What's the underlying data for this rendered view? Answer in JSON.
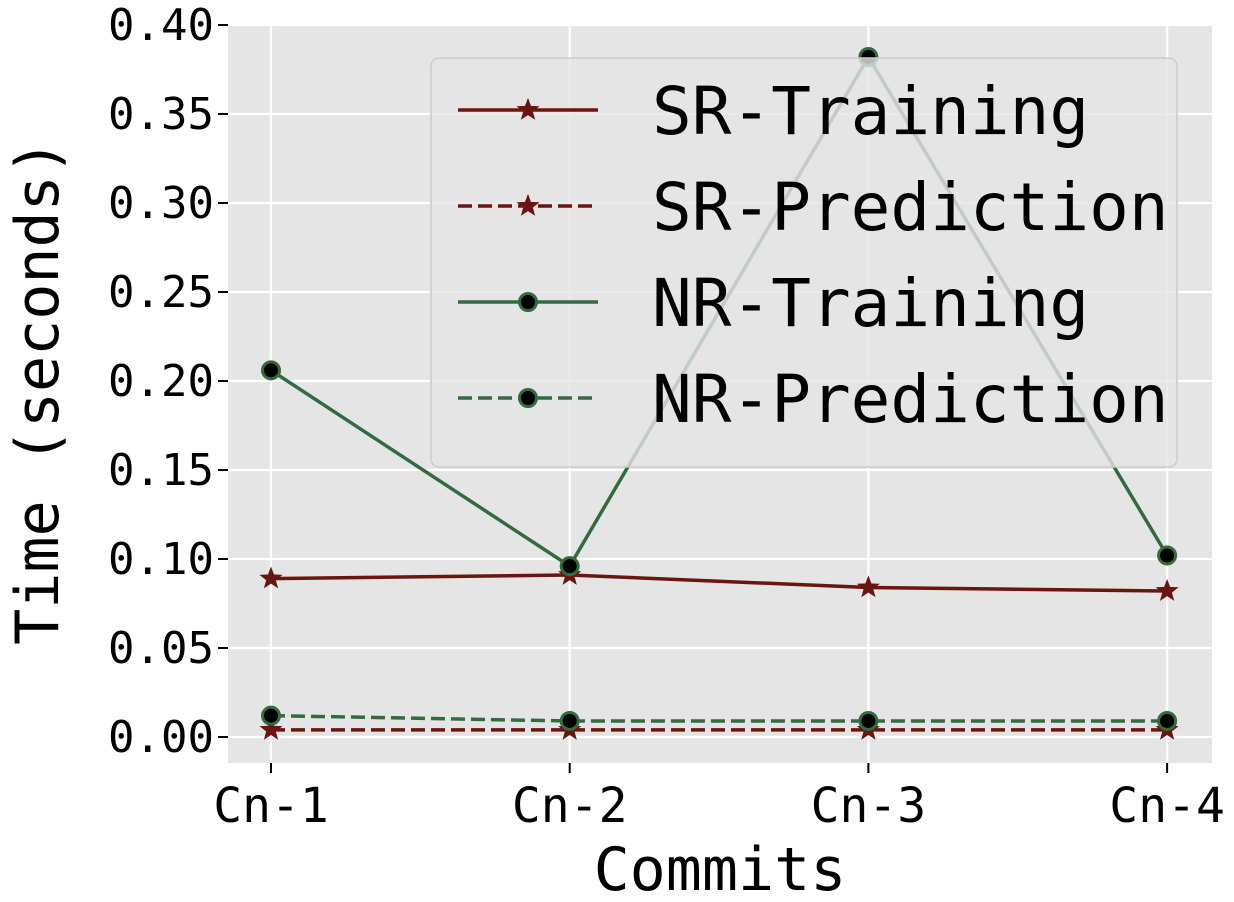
{
  "chart_data": {
    "type": "line",
    "title": "",
    "xlabel": "Commits",
    "ylabel": "Time (seconds)",
    "categories": [
      "Cn-1",
      "Cn-2",
      "Cn-3",
      "Cn-4"
    ],
    "ylim": [
      -0.013,
      0.4
    ],
    "yticks": [
      "0.00",
      "0.05",
      "0.10",
      "0.15",
      "0.20",
      "0.25",
      "0.30",
      "0.35",
      "0.40"
    ],
    "ytick_values": [
      0.0,
      0.05,
      0.1,
      0.15,
      0.2,
      0.25,
      0.3,
      0.35,
      0.4
    ],
    "grid": true,
    "legend_position": "top-right",
    "series": [
      {
        "name": "SR-Training",
        "values": [
          0.089,
          0.091,
          0.084,
          0.082
        ],
        "color": "#6b1510",
        "dash": "solid",
        "marker": "star"
      },
      {
        "name": "SR-Prediction",
        "values": [
          0.004,
          0.004,
          0.004,
          0.004
        ],
        "color": "#6b1510",
        "dash": "dashed",
        "marker": "star"
      },
      {
        "name": "NR-Training",
        "values": [
          0.206,
          0.096,
          0.382,
          0.102
        ],
        "color": "#336b40",
        "dash": "solid",
        "marker": "circle"
      },
      {
        "name": "NR-Prediction",
        "values": [
          0.012,
          0.009,
          0.009,
          0.009
        ],
        "color": "#336b40",
        "dash": "dashed",
        "marker": "circle"
      }
    ]
  }
}
